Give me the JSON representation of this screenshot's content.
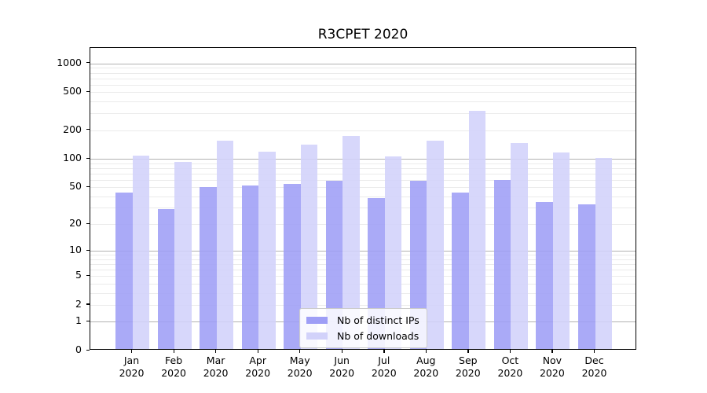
{
  "title": "R3CPET 2020",
  "legend": {
    "items": [
      {
        "label": "Nb of distinct IPs",
        "color": "#9e9ef6"
      },
      {
        "label": "Nb of downloads",
        "color": "#d2d2fa"
      }
    ]
  },
  "colors": {
    "distinct_ips": "#9e9ef6",
    "downloads": "#d2d2fa",
    "major_grid": "#b2b2b2",
    "minor_grid": "#ebebeb",
    "axis": "#000000",
    "background": "#ffffff"
  },
  "chart_data": {
    "type": "bar",
    "title": "R3CPET 2020",
    "categories": [
      "Jan 2020",
      "Feb 2020",
      "Mar 2020",
      "Apr 2020",
      "May 2020",
      "Jun 2020",
      "Jul 2020",
      "Aug 2020",
      "Sep 2020",
      "Oct 2020",
      "Nov 2020",
      "Dec 2020"
    ],
    "series": [
      {
        "name": "Nb of distinct IPs",
        "color": "#9e9ef6",
        "values": [
          44,
          29,
          50,
          52,
          54,
          58,
          38,
          58,
          44,
          60,
          35,
          33
        ]
      },
      {
        "name": "Nb of downloads",
        "color": "#d2d2fa",
        "values": [
          108,
          93,
          155,
          118,
          140,
          174,
          105,
          156,
          320,
          146,
          116,
          103
        ]
      }
    ],
    "xlabel": "",
    "ylabel": "",
    "y_scale": "log1p",
    "y_ticks": [
      0,
      1,
      2,
      5,
      10,
      20,
      50,
      100,
      200,
      500,
      1000
    ],
    "ylim": [
      0,
      1453
    ],
    "grid": "horizontal; darker lines at powers of 10, light minor lines at 2-9 multiples",
    "legend_position": "inside lower-center"
  }
}
